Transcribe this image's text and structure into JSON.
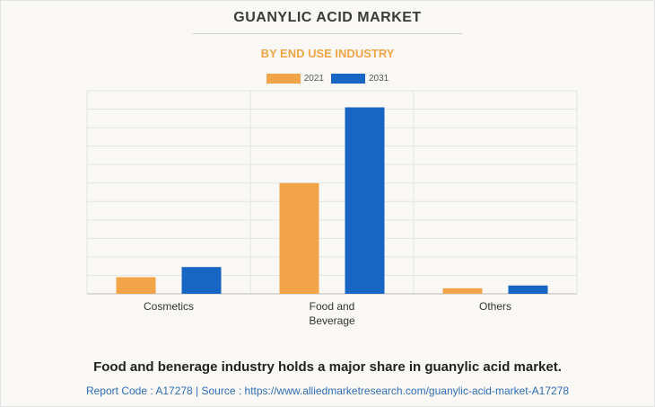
{
  "title": "GUANYLIC ACID MARKET",
  "subtitle": "BY END USE INDUSTRY",
  "colors": {
    "series_2021": "#f2a548",
    "series_2031": "#1766c4",
    "subtitle": "#f0a445",
    "footer": "#2f6db5"
  },
  "chart_data": {
    "type": "bar",
    "categories": [
      "Cosmetics",
      "Food and Beverage",
      "Others"
    ],
    "category_lines": [
      [
        "Cosmetics"
      ],
      [
        "Food and",
        "Beverage"
      ],
      [
        "Others"
      ]
    ],
    "series": [
      {
        "name": "2021",
        "values": [
          9,
          60,
          3
        ]
      },
      {
        "name": "2031",
        "values": [
          14.5,
          101,
          4.5
        ]
      }
    ],
    "ylim": [
      0,
      110
    ],
    "grid": true,
    "legend": "top-center",
    "xlabel": "",
    "ylabel": ""
  },
  "headline": "Food and benerage industry holds a major share in guanylic acid market.",
  "footer": "Report Code : A17278  |  Source : https://www.alliedmarketresearch.com/guanylic-acid-market-A17278"
}
